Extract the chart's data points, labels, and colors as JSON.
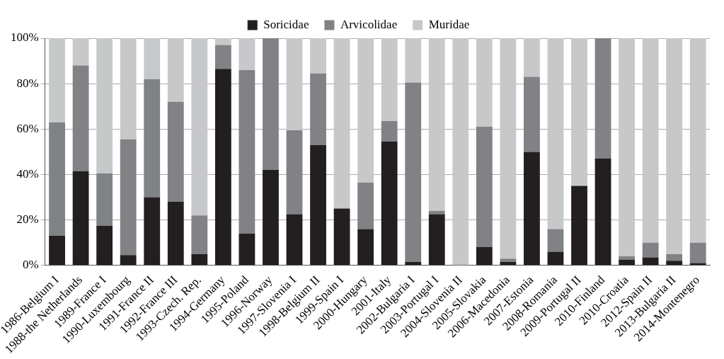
{
  "chart_data": {
    "type": "bar",
    "stacked": true,
    "categories": [
      "1986-Belgium I",
      "1988-the Netherlands",
      "1989-France I",
      "1990-Luxembourg",
      "1991-France II",
      "1992-France III",
      "1993-Czech. Rep.",
      "1994-Germany",
      "1995-Poland",
      "1996-Norway",
      "1997-Slovenia I",
      "1998-Belgium II",
      "1999-Spain I",
      "2000-Hungary",
      "2001-Italy",
      "2002-Bulgaria I",
      "2003-Portugal I",
      "2004-Slovenia II",
      "2005-Slovakia",
      "2006-Macedonia",
      "2007-Estonia",
      "2008-Romania",
      "2009-Portugal II",
      "2010-Finland",
      "2010-Croatia",
      "2012-Spain II",
      "2013-Bulgaria II",
      "2014-Montenegro"
    ],
    "series": [
      {
        "name": "Soricidae",
        "color": "#231f20",
        "values": [
          13,
          41.5,
          17.5,
          4.5,
          30,
          28,
          5,
          86.5,
          14,
          42,
          22.5,
          53,
          25,
          16,
          54.5,
          1.5,
          22.5,
          0,
          8,
          1.5,
          50,
          6,
          35,
          47,
          2.5,
          3.5,
          2,
          1
        ]
      },
      {
        "name": "Arvicolidae",
        "color": "#808285",
        "values": [
          50,
          46.5,
          23,
          51,
          52,
          44,
          17,
          10.5,
          72,
          58,
          37,
          31.5,
          0,
          20.5,
          9,
          79,
          1.5,
          0,
          53,
          1.5,
          33,
          10,
          0,
          53,
          1.5,
          6.5,
          3,
          9
        ]
      },
      {
        "name": "Muridae",
        "color": "#c7c8ca",
        "values": [
          37,
          12,
          59.5,
          44.5,
          18,
          28,
          78,
          3,
          14,
          0,
          40.5,
          15.5,
          75,
          63.5,
          36.5,
          19.5,
          76,
          100,
          39,
          97,
          17,
          84,
          65,
          0,
          96,
          90,
          95,
          90
        ]
      }
    ],
    "ylim": [
      0,
      100
    ],
    "yticks": [
      {
        "value": 0,
        "label": "0%"
      },
      {
        "value": 20,
        "label": "20%"
      },
      {
        "value": 40,
        "label": "40%"
      },
      {
        "value": 60,
        "label": "60%"
      },
      {
        "value": 80,
        "label": "80%"
      },
      {
        "value": 100,
        "label": "100%"
      }
    ],
    "grid": "y",
    "legend": "top"
  }
}
